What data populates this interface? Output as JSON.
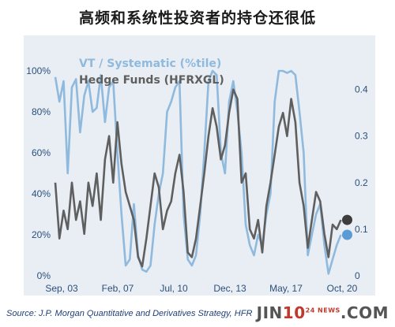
{
  "title": "高频和系统性投资者的持仓还很低",
  "source": "Source: J.P. Morgan Quantitative and Derivatives Strategy, HFR",
  "watermark": {
    "left": "JIN",
    "right": "10",
    "small": "24 NEWS",
    "suffix": ".COM"
  },
  "colors": {
    "vt": "#8fb9dd",
    "hf": "#5f5f5f",
    "plotBg": "#e8eef4",
    "axisText": "#2c4f7a"
  },
  "chart_data": {
    "type": "line",
    "x_ticks": [
      "Sep, 03",
      "Feb, 07",
      "Jul, 10",
      "Dec, 13",
      "May, 17",
      "Oct, 20"
    ],
    "x_range": [
      "2003-09",
      "2021-02"
    ],
    "left_axis": {
      "ticks": [
        "0%",
        "20%",
        "40%",
        "60%",
        "80%",
        "100%"
      ],
      "range": [
        0,
        100
      ]
    },
    "right_axis": {
      "ticks": [
        "0",
        "0.1",
        "0.2",
        "0.3",
        "0.4"
      ],
      "range": [
        0,
        0.44
      ]
    },
    "legend_position": "top-left",
    "series": [
      {
        "name": "VT / Systematic (%tile)",
        "axis": "left",
        "x": [
          "2003-09",
          "2003-12",
          "2004-03",
          "2004-06",
          "2004-09",
          "2004-12",
          "2005-03",
          "2005-06",
          "2005-09",
          "2005-12",
          "2006-03",
          "2006-06",
          "2006-09",
          "2006-12",
          "2007-03",
          "2007-06",
          "2007-09",
          "2007-12",
          "2008-03",
          "2008-06",
          "2008-09",
          "2008-12",
          "2009-03",
          "2009-06",
          "2009-09",
          "2009-12",
          "2010-03",
          "2010-06",
          "2010-09",
          "2010-12",
          "2011-03",
          "2011-06",
          "2011-09",
          "2011-12",
          "2012-03",
          "2012-06",
          "2012-09",
          "2012-12",
          "2013-03",
          "2013-06",
          "2013-09",
          "2013-12",
          "2014-03",
          "2014-06",
          "2014-09",
          "2014-12",
          "2015-03",
          "2015-06",
          "2015-09",
          "2015-12",
          "2016-03",
          "2016-06",
          "2016-09",
          "2016-12",
          "2017-03",
          "2017-06",
          "2017-09",
          "2017-12",
          "2018-03",
          "2018-06",
          "2018-09",
          "2018-12",
          "2019-03",
          "2019-06",
          "2019-09",
          "2019-12",
          "2020-03",
          "2020-06",
          "2020-09",
          "2020-12"
        ],
        "values": [
          97,
          85,
          95,
          50,
          92,
          96,
          70,
          88,
          95,
          80,
          82,
          98,
          75,
          92,
          95,
          60,
          30,
          5,
          8,
          35,
          10,
          3,
          2,
          5,
          25,
          40,
          50,
          80,
          85,
          92,
          95,
          30,
          8,
          5,
          10,
          30,
          60,
          95,
          100,
          98,
          60,
          50,
          85,
          95,
          80,
          60,
          25,
          15,
          10,
          20,
          15,
          30,
          40,
          85,
          100,
          100,
          99,
          100,
          98,
          80,
          60,
          10,
          20,
          30,
          35,
          15,
          1,
          8,
          15,
          20
        ]
      },
      {
        "name": "Hedge Funds (HFRXGL)",
        "axis": "right",
        "x": [
          "2003-09",
          "2003-12",
          "2004-03",
          "2004-06",
          "2004-09",
          "2004-12",
          "2005-03",
          "2005-06",
          "2005-09",
          "2005-12",
          "2006-03",
          "2006-06",
          "2006-09",
          "2006-12",
          "2007-03",
          "2007-06",
          "2007-09",
          "2007-12",
          "2008-03",
          "2008-06",
          "2008-09",
          "2008-12",
          "2009-03",
          "2009-06",
          "2009-09",
          "2009-12",
          "2010-03",
          "2010-06",
          "2010-09",
          "2010-12",
          "2011-03",
          "2011-06",
          "2011-09",
          "2011-12",
          "2012-03",
          "2012-06",
          "2012-09",
          "2012-12",
          "2013-03",
          "2013-06",
          "2013-09",
          "2013-12",
          "2014-03",
          "2014-06",
          "2014-09",
          "2014-12",
          "2015-03",
          "2015-06",
          "2015-09",
          "2015-12",
          "2016-03",
          "2016-06",
          "2016-09",
          "2016-12",
          "2017-03",
          "2017-06",
          "2017-09",
          "2017-12",
          "2018-03",
          "2018-06",
          "2018-09",
          "2018-12",
          "2019-03",
          "2019-06",
          "2019-09",
          "2019-12",
          "2020-03",
          "2020-06",
          "2020-09",
          "2020-12"
        ],
        "values": [
          0.2,
          0.08,
          0.14,
          0.1,
          0.2,
          0.12,
          0.16,
          0.09,
          0.2,
          0.15,
          0.22,
          0.12,
          0.25,
          0.3,
          0.2,
          0.33,
          0.24,
          0.18,
          0.15,
          0.12,
          0.04,
          0.02,
          0.08,
          0.15,
          0.22,
          0.19,
          0.1,
          0.14,
          0.16,
          0.22,
          0.26,
          0.18,
          0.05,
          0.04,
          0.08,
          0.15,
          0.22,
          0.3,
          0.36,
          0.32,
          0.25,
          0.28,
          0.35,
          0.4,
          0.38,
          0.2,
          0.22,
          0.1,
          0.08,
          0.12,
          0.05,
          0.15,
          0.2,
          0.26,
          0.32,
          0.35,
          0.3,
          0.38,
          0.33,
          0.2,
          0.15,
          0.06,
          0.12,
          0.18,
          0.16,
          0.09,
          0.04,
          0.11,
          0.1,
          0.12
        ]
      }
    ],
    "end_markers": {
      "vt_last": 20,
      "hf_last": 0.12
    }
  }
}
